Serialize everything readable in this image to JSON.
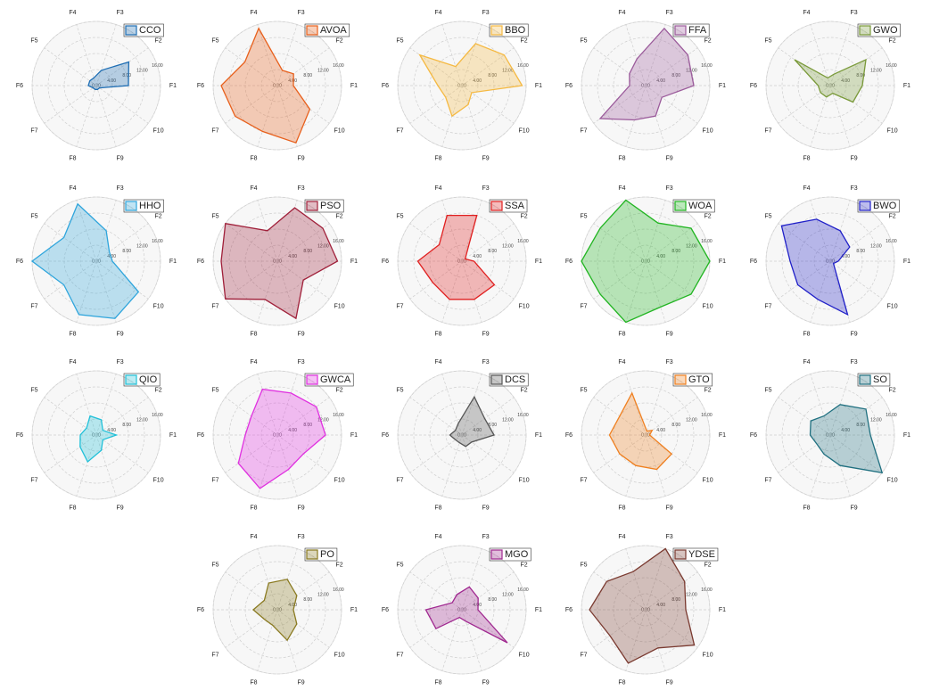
{
  "chart_data": [
    {
      "type": "radar",
      "categories": [
        "F1",
        "F2",
        "F3",
        "F4",
        "F5",
        "F6",
        "F7",
        "F8",
        "F9",
        "F10"
      ],
      "series": [
        {
          "name": "CCO",
          "color": "#1f6eb4",
          "values": [
            8,
            10,
            4,
            2,
            2,
            2,
            1,
            1,
            1,
            1
          ]
        }
      ],
      "ylim": [
        0,
        16
      ],
      "yticks": [
        {
          "value": 0,
          "label": "0.00"
        },
        {
          "value": 4,
          "label": "4.00"
        },
        {
          "value": 8,
          "label": "8.00"
        },
        {
          "value": 12,
          "label": "12.00"
        },
        {
          "value": 16,
          "label": "16.00"
        }
      ],
      "grid": true,
      "legend": "upper right"
    },
    {
      "type": "radar",
      "categories": [
        "F1",
        "F2",
        "F3",
        "F4",
        "F5",
        "F6",
        "F7",
        "F8",
        "F9",
        "F10"
      ],
      "series": [
        {
          "name": "AVOA",
          "color": "#e8601c",
          "values": [
            4,
            5,
            4,
            15,
            10,
            14,
            13,
            12,
            15,
            10
          ]
        }
      ],
      "ylim": [
        0,
        16
      ],
      "yticks": [
        {
          "value": 0,
          "label": "0.00"
        },
        {
          "value": 4,
          "label": "4.00"
        },
        {
          "value": 8,
          "label": "8.00"
        },
        {
          "value": 12,
          "label": "12.00"
        },
        {
          "value": 16,
          "label": "16.00"
        }
      ],
      "grid": true,
      "legend": "upper right"
    },
    {
      "type": "radar",
      "categories": [
        "F1",
        "F2",
        "F3",
        "F4",
        "F5",
        "F6",
        "F7",
        "F8",
        "F9",
        "F10"
      ],
      "series": [
        {
          "name": "BBO",
          "color": "#f5b942",
          "values": [
            15,
            13,
            11,
            5,
            13,
            6,
            5,
            8,
            5,
            3
          ]
        }
      ],
      "ylim": [
        0,
        16
      ],
      "yticks": [
        {
          "value": 0,
          "label": "0.00"
        },
        {
          "value": 4,
          "label": "4.00"
        },
        {
          "value": 8,
          "label": "8.00"
        },
        {
          "value": 12,
          "label": "12.00"
        },
        {
          "value": 16,
          "label": "16.00"
        }
      ],
      "grid": true,
      "legend": "upper right"
    },
    {
      "type": "radar",
      "categories": [
        "F1",
        "F2",
        "F3",
        "F4",
        "F5",
        "F6",
        "F7",
        "F8",
        "F9",
        "F10"
      ],
      "series": [
        {
          "name": "FFA",
          "color": "#9b5b9b",
          "values": [
            12,
            13,
            15,
            7,
            5,
            4,
            14,
            9,
            8,
            5
          ]
        }
      ],
      "ylim": [
        0,
        16
      ],
      "yticks": [
        {
          "value": 0,
          "label": "0.00"
        },
        {
          "value": 4,
          "label": "4.00"
        },
        {
          "value": 8,
          "label": "8.00"
        },
        {
          "value": 12,
          "label": "12.00"
        },
        {
          "value": 16,
          "label": "16.00"
        }
      ],
      "grid": true,
      "legend": "upper right"
    },
    {
      "type": "radar",
      "categories": [
        "F1",
        "F2",
        "F3",
        "F4",
        "F5",
        "F6",
        "F7",
        "F8",
        "F9",
        "F10"
      ],
      "series": [
        {
          "name": "GWO",
          "color": "#7a9a3a",
          "values": [
            8,
            11,
            3,
            2,
            11,
            3,
            3,
            3,
            2,
            7
          ]
        }
      ],
      "ylim": [
        0,
        16
      ],
      "yticks": [
        {
          "value": 0,
          "label": "0.00"
        },
        {
          "value": 4,
          "label": "4.00"
        },
        {
          "value": 8,
          "label": "8.00"
        },
        {
          "value": 12,
          "label": "12.00"
        },
        {
          "value": 16,
          "label": "16.00"
        }
      ],
      "grid": true,
      "legend": "upper right"
    },
    {
      "type": "radar",
      "categories": [
        "F1",
        "F2",
        "F3",
        "F4",
        "F5",
        "F6",
        "F7",
        "F8",
        "F9",
        "F10"
      ],
      "series": [
        {
          "name": "HHO",
          "color": "#2fa5dc",
          "values": [
            4,
            4,
            8,
            15,
            10,
            16,
            10,
            14,
            15,
            13
          ]
        }
      ],
      "ylim": [
        0,
        16
      ],
      "yticks": [
        {
          "value": 0,
          "label": "0.00"
        },
        {
          "value": 4,
          "label": "4.00"
        },
        {
          "value": 8,
          "label": "8.00"
        },
        {
          "value": 12,
          "label": "12.00"
        },
        {
          "value": 16,
          "label": "16.00"
        }
      ],
      "grid": true,
      "legend": "upper right"
    },
    {
      "type": "radar",
      "categories": [
        "F1",
        "F2",
        "F3",
        "F4",
        "F5",
        "F6",
        "F7",
        "F8",
        "F9",
        "F10"
      ],
      "series": [
        {
          "name": "PSO",
          "color": "#a0203a",
          "values": [
            15,
            14,
            14,
            8,
            16,
            14,
            16,
            10,
            15,
            8
          ]
        }
      ],
      "ylim": [
        0,
        16
      ],
      "yticks": [
        {
          "value": 0,
          "label": "0.00"
        },
        {
          "value": 4,
          "label": "4.00"
        },
        {
          "value": 8,
          "label": "8.00"
        },
        {
          "value": 12,
          "label": "12.00"
        },
        {
          "value": 16,
          "label": "16.00"
        }
      ],
      "grid": true,
      "legend": "upper right"
    },
    {
      "type": "radar",
      "categories": [
        "F1",
        "F2",
        "F3",
        "F4",
        "F5",
        "F6",
        "F7",
        "F8",
        "F9",
        "F10"
      ],
      "series": [
        {
          "name": "SSA",
          "color": "#e02020",
          "values": [
            3,
            1,
            12,
            12,
            7,
            11,
            9,
            10,
            10,
            10
          ]
        }
      ],
      "ylim": [
        0,
        16
      ],
      "yticks": [
        {
          "value": 0,
          "label": "0.00"
        },
        {
          "value": 4,
          "label": "4.00"
        },
        {
          "value": 8,
          "label": "8.00"
        },
        {
          "value": 12,
          "label": "12.00"
        },
        {
          "value": 16,
          "label": "16.00"
        }
      ],
      "grid": true,
      "legend": "upper right"
    },
    {
      "type": "radar",
      "categories": [
        "F1",
        "F2",
        "F3",
        "F4",
        "F5",
        "F6",
        "F7",
        "F8",
        "F9",
        "F10"
      ],
      "series": [
        {
          "name": "WOA",
          "color": "#22b522",
          "values": [
            16,
            14,
            10,
            16,
            14,
            16,
            14,
            16,
            12,
            14
          ]
        }
      ],
      "ylim": [
        0,
        16
      ],
      "yticks": [
        {
          "value": 0,
          "label": "0.00"
        },
        {
          "value": 4,
          "label": "4.00"
        },
        {
          "value": 8,
          "label": "8.00"
        },
        {
          "value": 12,
          "label": "12.00"
        },
        {
          "value": 16,
          "label": "16.00"
        }
      ],
      "grid": true,
      "legend": "upper right"
    },
    {
      "type": "radar",
      "categories": [
        "F1",
        "F2",
        "F3",
        "F4",
        "F5",
        "F6",
        "F7",
        "F8",
        "F9",
        "F10"
      ],
      "series": [
        {
          "name": "BWO",
          "color": "#2020c8",
          "values": [
            2,
            6,
            8,
            11,
            15,
            10,
            10,
            10,
            14,
            1
          ]
        }
      ],
      "ylim": [
        0,
        16
      ],
      "yticks": [
        {
          "value": 0,
          "label": "0.00"
        },
        {
          "value": 4,
          "label": "4.00"
        },
        {
          "value": 8,
          "label": "8.00"
        },
        {
          "value": 12,
          "label": "12.00"
        },
        {
          "value": 16,
          "label": "16.00"
        }
      ],
      "grid": true,
      "legend": "upper right"
    },
    {
      "type": "radar",
      "categories": [
        "F1",
        "F2",
        "F3",
        "F4",
        "F5",
        "F6",
        "F7",
        "F8",
        "F9",
        "F10"
      ],
      "series": [
        {
          "name": "QIO",
          "color": "#20c0d8",
          "values": [
            5,
            2,
            4,
            5,
            3,
            4,
            5,
            7,
            4,
            2
          ]
        }
      ],
      "ylim": [
        0,
        16
      ],
      "yticks": [
        {
          "value": 0,
          "label": "0.00"
        },
        {
          "value": 4,
          "label": "4.00"
        },
        {
          "value": 8,
          "label": "8.00"
        },
        {
          "value": 12,
          "label": "12.00"
        },
        {
          "value": 16,
          "label": "16.00"
        }
      ],
      "grid": true,
      "legend": "upper right"
    },
    {
      "type": "radar",
      "categories": [
        "F1",
        "F2",
        "F3",
        "F4",
        "F5",
        "F6",
        "F7",
        "F8",
        "F9",
        "F10"
      ],
      "series": [
        {
          "name": "GWCA",
          "color": "#e030e0",
          "values": [
            12,
            12,
            11,
            12,
            8,
            8,
            12,
            14,
            9,
            8
          ]
        }
      ],
      "ylim": [
        0,
        16
      ],
      "yticks": [
        {
          "value": 0,
          "label": "0.00"
        },
        {
          "value": 4,
          "label": "4.00"
        },
        {
          "value": 8,
          "label": "8.00"
        },
        {
          "value": 12,
          "label": "12.00"
        },
        {
          "value": 16,
          "label": "16.00"
        }
      ],
      "grid": true,
      "legend": "upper right"
    },
    {
      "type": "radar",
      "categories": [
        "F1",
        "F2",
        "F3",
        "F4",
        "F5",
        "F6",
        "F7",
        "F8",
        "F9",
        "F10"
      ],
      "series": [
        {
          "name": "DCS",
          "color": "#555555",
          "values": [
            8,
            7,
            10,
            3,
            2,
            3,
            2,
            2,
            3,
            3
          ]
        }
      ],
      "ylim": [
        0,
        16
      ],
      "yticks": [
        {
          "value": 0,
          "label": "0.00"
        },
        {
          "value": 4,
          "label": "4.00"
        },
        {
          "value": 8,
          "label": "8.00"
        },
        {
          "value": 12,
          "label": "12.00"
        },
        {
          "value": 16,
          "label": "16.00"
        }
      ],
      "grid": true,
      "legend": "upper right"
    },
    {
      "type": "radar",
      "categories": [
        "F1",
        "F2",
        "F3",
        "F4",
        "F5",
        "F6",
        "F7",
        "F8",
        "F9",
        "F10"
      ],
      "series": [
        {
          "name": "GTO",
          "color": "#f08020",
          "values": [
            1,
            2,
            1,
            11,
            8,
            9,
            8,
            8,
            9,
            8
          ]
        }
      ],
      "ylim": [
        0,
        16
      ],
      "yticks": [
        {
          "value": 0,
          "label": "0.00"
        },
        {
          "value": 4,
          "label": "4.00"
        },
        {
          "value": 8,
          "label": "8.00"
        },
        {
          "value": 12,
          "label": "12.00"
        },
        {
          "value": 16,
          "label": "16.00"
        }
      ],
      "grid": true,
      "legend": "upper right"
    },
    {
      "type": "radar",
      "categories": [
        "F1",
        "F2",
        "F3",
        "F4",
        "F5",
        "F6",
        "F7",
        "F8",
        "F9",
        "F10"
      ],
      "series": [
        {
          "name": "SO",
          "color": "#207080",
          "values": [
            10,
            11,
            8,
            5,
            6,
            5,
            4,
            5,
            8,
            16
          ]
        }
      ],
      "ylim": [
        0,
        16
      ],
      "yticks": [
        {
          "value": 0,
          "label": "0.00"
        },
        {
          "value": 4,
          "label": "4.00"
        },
        {
          "value": 8,
          "label": "8.00"
        },
        {
          "value": 12,
          "label": "12.00"
        },
        {
          "value": 16,
          "label": "16.00"
        }
      ],
      "grid": true,
      "legend": "upper right"
    },
    {
      "type": "radar",
      "categories": [
        "F1",
        "F2",
        "F3",
        "F4",
        "F5",
        "F6",
        "F7",
        "F8",
        "F9",
        "F10"
      ],
      "series": [
        {
          "name": "PO",
          "color": "#8a7a20",
          "values": [
            4,
            6,
            8,
            7,
            4,
            6,
            4,
            4,
            8,
            6
          ]
        }
      ],
      "ylim": [
        0,
        16
      ],
      "yticks": [
        {
          "value": 0,
          "label": "0.00"
        },
        {
          "value": 4,
          "label": "4.00"
        },
        {
          "value": 8,
          "label": "8.00"
        },
        {
          "value": 12,
          "label": "12.00"
        },
        {
          "value": 16,
          "label": "16.00"
        }
      ],
      "grid": true,
      "legend": "upper right"
    },
    {
      "type": "radar",
      "categories": [
        "F1",
        "F2",
        "F3",
        "F4",
        "F5",
        "F6",
        "F7",
        "F8",
        "F9",
        "F10"
      ],
      "series": [
        {
          "name": "MGO",
          "color": "#a02890",
          "values": [
            4,
            5,
            6,
            4,
            3,
            9,
            8,
            2,
            3,
            14
          ]
        }
      ],
      "ylim": [
        0,
        16
      ],
      "yticks": [
        {
          "value": 0,
          "label": "0.00"
        },
        {
          "value": 4,
          "label": "4.00"
        },
        {
          "value": 8,
          "label": "8.00"
        },
        {
          "value": 12,
          "label": "12.00"
        },
        {
          "value": 16,
          "label": "16.00"
        }
      ],
      "grid": true,
      "legend": "upper right"
    },
    {
      "type": "radar",
      "categories": [
        "F1",
        "F2",
        "F3",
        "F4",
        "F5",
        "F6",
        "F7",
        "F8",
        "F9",
        "F10"
      ],
      "series": [
        {
          "name": "YDSE",
          "color": "#7a3a30",
          "values": [
            10,
            12,
            16,
            10,
            12,
            14,
            11,
            14,
            10,
            15
          ]
        }
      ],
      "ylim": [
        0,
        16
      ],
      "yticks": [
        {
          "value": 0,
          "label": "0.00"
        },
        {
          "value": 4,
          "label": "4.00"
        },
        {
          "value": 8,
          "label": "8.00"
        },
        {
          "value": 12,
          "label": "12.00"
        },
        {
          "value": 16,
          "label": "16.00"
        }
      ],
      "grid": true,
      "legend": "upper right"
    }
  ]
}
